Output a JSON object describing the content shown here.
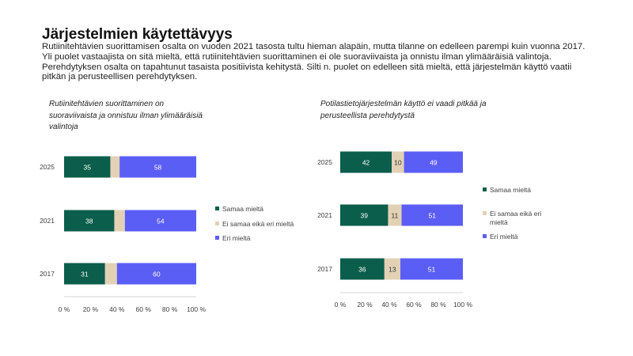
{
  "title": "Järjestelmien käytettävyys",
  "intro": "Rutiinitehtävien suorittamisen osalta on vuoden 2021 tasosta tultu hieman alapäin, mutta tilanne on edelleen parempi kuin vuonna 2017. Yli puolet vastaajista on sitä mieltä, että rutiinitehtävien suorittaminen ei ole suoraviivaista ja onnistu ilman ylimääräisiä valintoja. Perehdytyksen osalta on tapahtunut tasaista positiivista kehitystä. Silti n. puolet on edelleen sitä mieltä, että järjestelmän käyttö vaatii pitkän ja perusteellisen perehdytyksen.",
  "colors": {
    "samaa": "#0b5e4b",
    "neutral": "#e3d1b5",
    "eri": "#5b5ef5",
    "axis": "#d6d6d6",
    "text": "#404040"
  },
  "chart_data": [
    {
      "type": "bar",
      "orientation": "horizontal-stacked",
      "title": "Rutiinitehtävien suorittaminen on suoraviivaista ja onnistuu ilman ylimääräisiä valintoja",
      "categories": [
        "2025",
        "2021",
        "2017"
      ],
      "series": [
        {
          "name": "Samaa mieltä",
          "values": [
            35,
            38,
            31
          ]
        },
        {
          "name": "Ei samaa eikä eri mieltä",
          "values": [
            7,
            8,
            9
          ]
        },
        {
          "name": "Eri mieltä",
          "values": [
            58,
            54,
            60
          ]
        }
      ],
      "data_labels": [
        {
          "series": 0,
          "shown": [
            true,
            true,
            true
          ]
        },
        {
          "series": 1,
          "shown": [
            false,
            false,
            false
          ]
        },
        {
          "series": 2,
          "shown": [
            true,
            true,
            true
          ]
        }
      ],
      "xlim": [
        0,
        100
      ],
      "xticks": [
        "0 %",
        "20 %",
        "40 %",
        "60 %",
        "80 %",
        "100 %"
      ],
      "legend": "right"
    },
    {
      "type": "bar",
      "orientation": "horizontal-stacked",
      "title": "Potilastietojärjestelmän käyttö ei vaadi pitkää ja perusteellista perehdytystä",
      "categories": [
        "2025",
        "2021",
        "2017"
      ],
      "series": [
        {
          "name": "Samaa mieltä",
          "values": [
            42,
            39,
            36
          ]
        },
        {
          "name": "Ei samaa eikä eri mieltä",
          "values": [
            10,
            11,
            13
          ]
        },
        {
          "name": "Eri mieltä",
          "values": [
            49,
            51,
            51
          ]
        }
      ],
      "data_labels": [
        {
          "series": 0,
          "shown": [
            true,
            true,
            true
          ]
        },
        {
          "series": 1,
          "shown": [
            true,
            true,
            true
          ]
        },
        {
          "series": 2,
          "shown": [
            true,
            true,
            true
          ]
        }
      ],
      "xlim": [
        0,
        100
      ],
      "xticks": [
        "0 %",
        "20 %",
        "40 %",
        "60 %",
        "80 %",
        "100 %"
      ],
      "legend": "right"
    }
  ]
}
